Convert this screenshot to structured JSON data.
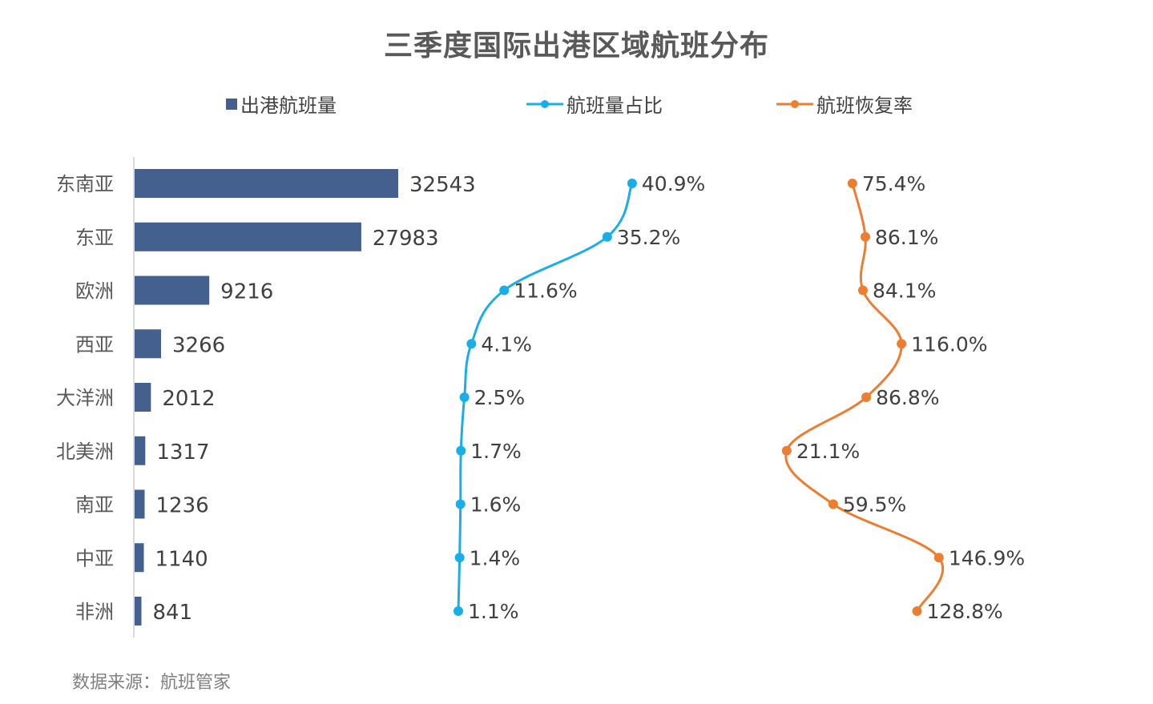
{
  "chart_data": {
    "type": "bar",
    "title": "三季度国际出港区域航班分布",
    "categories": [
      "东南亚",
      "东亚",
      "欧洲",
      "西亚",
      "大洋洲",
      "北美洲",
      "南亚",
      "中亚",
      "非洲"
    ],
    "series": [
      {
        "name": "出港航班量",
        "type": "bar",
        "color": "#44608E",
        "values": [
          32543,
          27983,
          9216,
          3266,
          2012,
          1317,
          1236,
          1140,
          841
        ],
        "labels": [
          "32543",
          "27983",
          "9216",
          "3266",
          "2012",
          "1317",
          "1236",
          "1140",
          "841"
        ]
      },
      {
        "name": "航班量占比",
        "type": "line",
        "color": "#1AAEE8",
        "values": [
          40.9,
          35.2,
          11.6,
          4.1,
          2.5,
          1.7,
          1.6,
          1.4,
          1.1
        ],
        "labels": [
          "40.9%",
          "35.2%",
          "11.6%",
          "4.1%",
          "2.5%",
          "1.7%",
          "1.6%",
          "1.4%",
          "1.1%"
        ]
      },
      {
        "name": "航班恢复率",
        "type": "line",
        "color": "#ED7D31",
        "values": [
          75.4,
          86.1,
          84.1,
          116.0,
          86.8,
          21.1,
          59.5,
          146.9,
          128.8
        ],
        "labels": [
          "75.4%",
          "86.1%",
          "84.1%",
          "116.0%",
          "86.8%",
          "21.1%",
          "59.5%",
          "146.9%",
          "128.8%"
        ]
      }
    ],
    "orientation": "horizontal",
    "legend_position": "top",
    "grid": false
  },
  "legend": {
    "bar": "出港航班量",
    "share": "航班量占比",
    "recovery": "航班恢复率"
  },
  "source": "数据来源：航班管家"
}
